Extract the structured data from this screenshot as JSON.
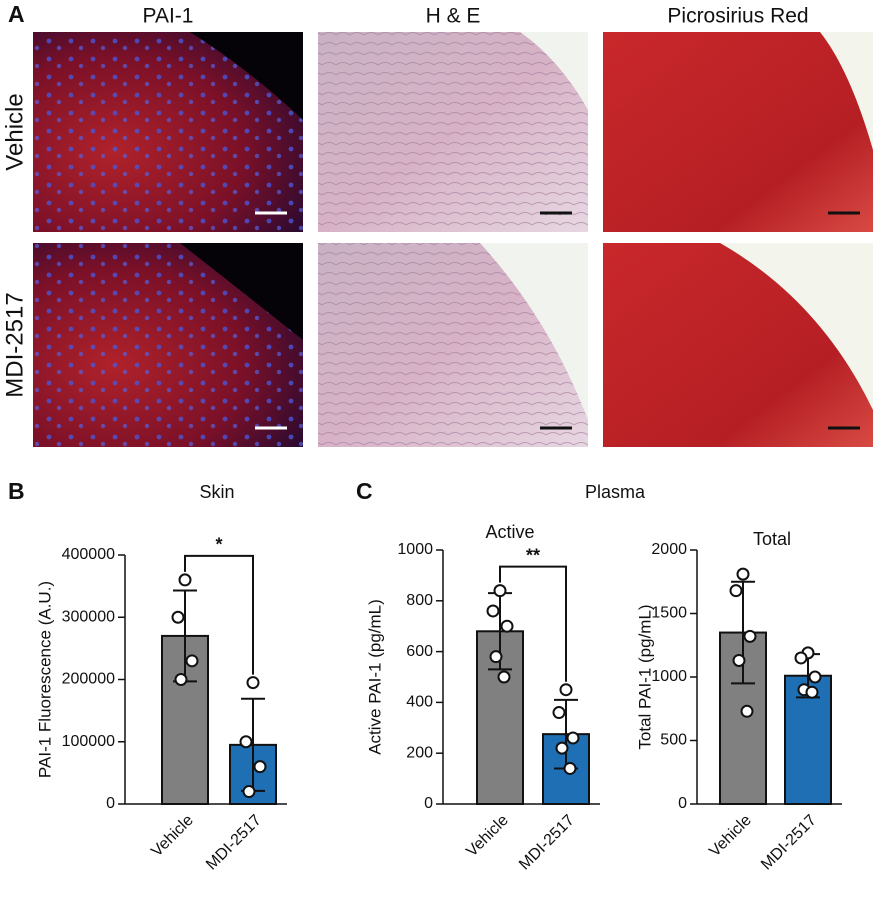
{
  "panel_a": {
    "label": "A",
    "columns": [
      "PAI-1",
      "H & E",
      "Picrosirius Red"
    ],
    "rows": [
      "Vehicle",
      "MDI-2517"
    ]
  },
  "panel_b": {
    "label": "B",
    "title": "Skin"
  },
  "panel_c": {
    "label": "C",
    "title": "Plasma"
  },
  "chart_data": [
    {
      "type": "bar",
      "ylabel": "PAI-1 Fluorescence (A.U.)",
      "categories": [
        "Vehicle",
        "MDI-2517"
      ],
      "values": [
        270000,
        95000
      ],
      "errors": [
        73000,
        74000
      ],
      "colors": [
        "#808080",
        "#1f6fb5"
      ],
      "points": [
        [
          360000,
          300000,
          230000,
          200000
        ],
        [
          195000,
          100000,
          60000,
          20000
        ]
      ],
      "annotation": "*",
      "ylim": [
        0,
        400000
      ],
      "yticks": [
        0,
        100000,
        200000,
        300000,
        400000
      ]
    },
    {
      "type": "bar",
      "title": "Active",
      "ylabel": "Active PAI-1 (pg/mL)",
      "categories": [
        "Vehicle",
        "MDI-2517"
      ],
      "values": [
        680,
        275
      ],
      "errors": [
        150,
        135
      ],
      "colors": [
        "#808080",
        "#1f6fb5"
      ],
      "points": [
        [
          840,
          760,
          700,
          580,
          500
        ],
        [
          450,
          360,
          260,
          220,
          140
        ]
      ],
      "annotation": "**",
      "ylim": [
        0,
        1000
      ],
      "yticks": [
        0,
        200,
        400,
        600,
        800,
        1000
      ]
    },
    {
      "type": "bar",
      "title": "Total",
      "ylabel": "Total PAI-1 (pg/mL)",
      "categories": [
        "Vehicle",
        "MDI-2517"
      ],
      "values": [
        1350,
        1010
      ],
      "errors": [
        400,
        170
      ],
      "colors": [
        "#808080",
        "#1f6fb5"
      ],
      "points": [
        [
          1810,
          1680,
          1320,
          1130,
          730
        ],
        [
          1190,
          1150,
          1000,
          900,
          880
        ]
      ],
      "ylim": [
        0,
        2000
      ],
      "yticks": [
        0,
        500,
        1000,
        1500,
        2000
      ]
    }
  ]
}
